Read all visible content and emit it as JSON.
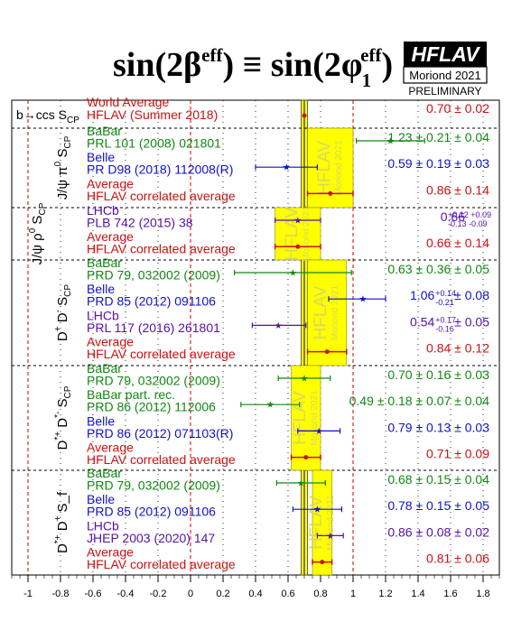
{
  "header": {
    "title_main": "sin(2β",
    "title_sup1": "eff",
    "title_mid": ") ≡ sin(2φ",
    "title_sub": "1",
    "title_sup2": "eff",
    "title_end": ")",
    "logo_text": "HFLAV",
    "logo_subtitle": "Moriond 2021",
    "preliminary": "PRELIMINARY"
  },
  "colors": {
    "babar": "#118811",
    "belle": "#1111cc",
    "lhcb": "#5511aa",
    "average": "#cc1111",
    "band": "#ffff00",
    "band_edge": "#888800",
    "world_avg_line": "#555555"
  },
  "chart_data": {
    "type": "scatter",
    "xlim": [
      -1.1,
      1.9
    ],
    "x_ticks": [
      -1,
      -0.8,
      -0.6,
      -0.4,
      -0.2,
      0,
      0.2,
      0.4,
      0.6,
      0.8,
      1,
      1.2,
      1.4,
      1.6,
      1.8
    ],
    "x_tick_labels": [
      "-1",
      "-0.8",
      "-0.6",
      "-0.4",
      "-0.2",
      "0",
      "0.2",
      "0.4",
      "0.6",
      "0.8",
      "1",
      "1.2",
      "1.4",
      "1.6",
      "1.8"
    ],
    "world_average": {
      "value": 0.7,
      "error": 0.02,
      "label": "World Average",
      "sublabel": "HFLAV (Summer 2018)",
      "value_text": "0.70 ± 0.02"
    },
    "band_label": "HFLAV",
    "band_sublabel": "Moriond 2021",
    "groups": [
      {
        "label": "b→ccs S",
        "label_sub": "CP",
        "entries": []
      },
      {
        "label": "J/ψ π",
        "label_sup": "0",
        "label_tail": " S",
        "label_sub": "CP",
        "average": {
          "value": 0.86,
          "error": 0.14
        },
        "entries": [
          {
            "experiment": "BaBar",
            "ref": "PRL 101 (2008) 021801",
            "value": 1.23,
            "err_lo": 0.21,
            "err_hi": 0.21,
            "value_text": "1.23 ± 0.21 ± 0.04",
            "color": "babar"
          },
          {
            "experiment": "Belle",
            "ref": "PR D98 (2018) 112008(R)",
            "value": 0.59,
            "err_lo": 0.19,
            "err_hi": 0.19,
            "value_text": "0.59 ± 0.19 ± 0.03",
            "color": "belle"
          },
          {
            "experiment": "Average",
            "ref": "HFLAV correlated average",
            "value_text": "0.86 ± 0.14",
            "color": "average",
            "is_average": true
          }
        ]
      },
      {
        "label": "J/ψ ρ",
        "label_sup": "0",
        "label_tail": " S",
        "label_sub": "CP",
        "average": {
          "value": 0.66,
          "error": 0.14
        },
        "entries": [
          {
            "experiment": "LHCb",
            "ref": "PLB 742 (2015) 38",
            "value": 0.66,
            "err_lo": 0.14,
            "err_hi": 0.14,
            "value_text": "0.66",
            "value_sup": "+0.12 +0.09",
            "value_sub": "-0.13 -0.09",
            "color": "lhcb"
          },
          {
            "experiment": "Average",
            "ref": "HFLAV correlated average",
            "value_text": "0.66 ± 0.14",
            "color": "average",
            "is_average": true
          }
        ]
      },
      {
        "label": "D",
        "label_sup": "+",
        "label_tail": " D",
        "label_sup2": "-",
        "label_tail2": " S",
        "label_sub": "CP",
        "average": {
          "value": 0.84,
          "error": 0.12
        },
        "entries": [
          {
            "experiment": "BaBar",
            "ref": "PRD 79, 032002 (2009)",
            "value": 0.63,
            "err_lo": 0.36,
            "err_hi": 0.36,
            "value_text": "0.63 ± 0.36 ± 0.05",
            "color": "babar"
          },
          {
            "experiment": "Belle",
            "ref": "PRD 85 (2012) 091106",
            "value": 1.06,
            "err_lo": 0.21,
            "err_hi": 0.14,
            "value_text": "1.06",
            "value_sup": "+0.14",
            "value_sub": "-0.21",
            "value_tail": " ± 0.08",
            "color": "belle"
          },
          {
            "experiment": "LHCb",
            "ref": "PRL 117 (2016) 261801",
            "value": 0.54,
            "err_lo": 0.16,
            "err_hi": 0.17,
            "value_text": "0.54",
            "value_sup": "+0.17",
            "value_sub": "-0.16",
            "value_tail": " ± 0.05",
            "color": "lhcb"
          },
          {
            "experiment": "Average",
            "ref": "HFLAV correlated average",
            "value_text": "0.84 ± 0.12",
            "color": "average",
            "is_average": true
          }
        ]
      },
      {
        "label": "D",
        "label_sup": "*+",
        "label_tail": " D",
        "label_sup2": "*-",
        "label_tail2": " S",
        "label_sub": "CP",
        "average": {
          "value": 0.71,
          "error": 0.09
        },
        "entries": [
          {
            "experiment": "BaBar",
            "ref": "PRD 79, 032002 (2009)",
            "value": 0.7,
            "err_lo": 0.16,
            "err_hi": 0.16,
            "value_text": "0.70 ± 0.16 ± 0.03",
            "color": "babar"
          },
          {
            "experiment": "BaBar part. rec.",
            "ref": "PRD 86 (2012) 112006",
            "value": 0.49,
            "err_lo": 0.18,
            "err_hi": 0.18,
            "value_text": "0.49 ± 0.18 ± 0.07 ± 0.04",
            "color": "babar"
          },
          {
            "experiment": "Belle",
            "ref": "PRD 86 (2012) 071103(R)",
            "value": 0.79,
            "err_lo": 0.13,
            "err_hi": 0.13,
            "value_text": "0.79 ± 0.13 ± 0.03",
            "color": "belle"
          },
          {
            "experiment": "Average",
            "ref": "HFLAV correlated average",
            "value_text": "0.71 ± 0.09",
            "color": "average",
            "is_average": true
          }
        ]
      },
      {
        "label": "D",
        "label_sup": "*+",
        "label_tail": " D",
        "label_sup2": "+",
        "label_tail2": " S_f",
        "label_sub": "",
        "average": {
          "value": 0.81,
          "error": 0.06
        },
        "entries": [
          {
            "experiment": "BaBar",
            "ref": "PRD 79, 032002 (2009)",
            "value": 0.68,
            "err_lo": 0.15,
            "err_hi": 0.15,
            "value_text": "0.68 ± 0.15 ± 0.04",
            "color": "babar"
          },
          {
            "experiment": "Belle",
            "ref": "PRD 85 (2012) 091106",
            "value": 0.78,
            "err_lo": 0.15,
            "err_hi": 0.15,
            "value_text": "0.78 ± 0.15 ± 0.05",
            "color": "belle"
          },
          {
            "experiment": "LHCb",
            "ref": "JHEP 2003 (2020) 147",
            "value": 0.86,
            "err_lo": 0.08,
            "err_hi": 0.08,
            "value_text": "0.86 ± 0.08 ± 0.02",
            "color": "lhcb"
          },
          {
            "experiment": "Average",
            "ref": "HFLAV correlated average",
            "value_text": "0.81 ± 0.06",
            "color": "average",
            "is_average": true
          }
        ]
      }
    ]
  }
}
